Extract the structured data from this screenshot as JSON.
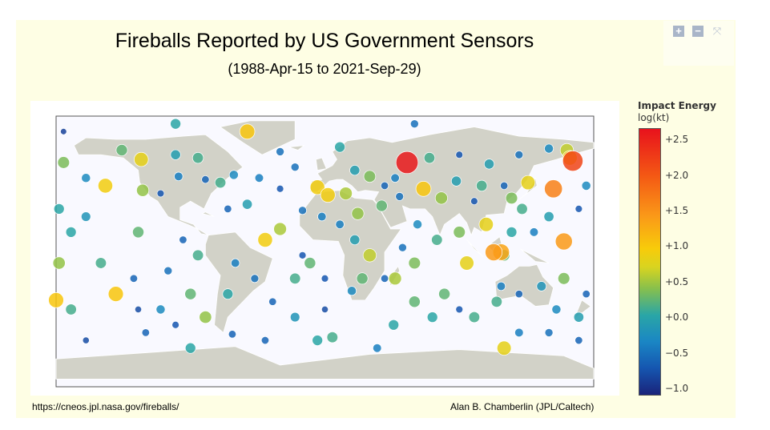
{
  "chart_data": {
    "type": "scatter",
    "subtype": "geo-bubble-map",
    "title": "Fireballs Reported by US Government Sensors",
    "subtitle": "(1988-Apr-15 to 2021-Sep-29)",
    "colorbar": {
      "title": "Impact Energy",
      "unit": "log(kt)",
      "range": [
        -1.1,
        2.66
      ],
      "ticks": [
        {
          "v": 2.5,
          "label": "+2.5"
        },
        {
          "v": 2.0,
          "label": "+2.0"
        },
        {
          "v": 1.5,
          "label": "+1.5"
        },
        {
          "v": 1.0,
          "label": "+1.0"
        },
        {
          "v": 0.5,
          "label": "+0.5"
        },
        {
          "v": 0.0,
          "label": "+0.0"
        },
        {
          "v": -0.5,
          "label": "−0.5"
        },
        {
          "v": -1.0,
          "label": "−1.0"
        }
      ]
    },
    "points_fields": [
      "lon",
      "lat",
      "log_energy_kt"
    ],
    "points": [
      [
        55,
        55,
        2.6
      ],
      [
        166,
        56,
        2.2
      ],
      [
        153,
        38,
        1.7
      ],
      [
        -180,
        -34,
        1.1
      ],
      [
        113,
        -3,
        1.5
      ],
      [
        118,
        -3,
        1.4
      ],
      [
        160,
        4,
        1.5
      ],
      [
        136,
        42,
        0.9
      ],
      [
        164,
        58,
        1.0
      ],
      [
        -147,
        40,
        1.0
      ],
      [
        -123,
        57,
        0.9
      ],
      [
        -122,
        37,
        0.5
      ],
      [
        -136,
        63,
        0.3
      ],
      [
        -100,
        60,
        0.0
      ],
      [
        -85,
        58,
        0.2
      ],
      [
        -98,
        46,
        -0.3
      ],
      [
        -80,
        44,
        -0.5
      ],
      [
        -110,
        35,
        -0.6
      ],
      [
        -70,
        42,
        0.2
      ],
      [
        -61,
        47,
        -0.2
      ],
      [
        -44,
        45,
        -0.3
      ],
      [
        -20,
        52,
        -0.4
      ],
      [
        -30,
        38,
        -0.6
      ],
      [
        -5,
        39,
        1.0
      ],
      [
        2,
        34,
        1.0
      ],
      [
        -15,
        24,
        -0.4
      ],
      [
        -30,
        12,
        0.6
      ],
      [
        -160,
        20,
        -0.1
      ],
      [
        -170,
        10,
        0.1
      ],
      [
        -150,
        -10,
        0.2
      ],
      [
        -128,
        -20,
        -0.5
      ],
      [
        -140,
        -30,
        1.1
      ],
      [
        -110,
        -40,
        -0.2
      ],
      [
        -100,
        -50,
        -0.6
      ],
      [
        -170,
        -40,
        0.2
      ],
      [
        -60,
        -10,
        -0.3
      ],
      [
        -47,
        -20,
        -0.4
      ],
      [
        -65,
        -30,
        0.1
      ],
      [
        -35,
        -35,
        -0.5
      ],
      [
        -20,
        -20,
        0.2
      ],
      [
        -10,
        -10,
        0.3
      ],
      [
        0,
        -40,
        -0.7
      ],
      [
        -40,
        -60,
        -0.5
      ],
      [
        20,
        50,
        0.0
      ],
      [
        30,
        46,
        0.4
      ],
      [
        40,
        40,
        -0.5
      ],
      [
        47,
        45,
        -0.3
      ],
      [
        70,
        58,
        0.2
      ],
      [
        90,
        60,
        -0.6
      ],
      [
        110,
        54,
        0.0
      ],
      [
        130,
        60,
        -0.4
      ],
      [
        150,
        64,
        -0.2
      ],
      [
        14,
        35,
        0.6
      ],
      [
        22,
        22,
        0.5
      ],
      [
        38,
        27,
        0.3
      ],
      [
        50,
        33,
        -0.4
      ],
      [
        66,
        38,
        1.1
      ],
      [
        78,
        32,
        0.5
      ],
      [
        88,
        43,
        0.0
      ],
      [
        100,
        30,
        -0.6
      ],
      [
        105,
        40,
        0.2
      ],
      [
        120,
        40,
        -0.5
      ],
      [
        10,
        15,
        -0.3
      ],
      [
        20,
        5,
        0.0
      ],
      [
        30,
        -5,
        0.7
      ],
      [
        25,
        -20,
        0.3
      ],
      [
        18,
        -28,
        -0.2
      ],
      [
        40,
        -20,
        -0.5
      ],
      [
        47,
        -20,
        0.6
      ],
      [
        52,
        0,
        -0.4
      ],
      [
        60,
        -10,
        0.4
      ],
      [
        62,
        15,
        -0.2
      ],
      [
        75,
        5,
        0.2
      ],
      [
        90,
        10,
        0.4
      ],
      [
        95,
        -10,
        0.9
      ],
      [
        80,
        -30,
        0.3
      ],
      [
        72,
        -45,
        0.1
      ],
      [
        60,
        -35,
        0.3
      ],
      [
        90,
        -40,
        -0.6
      ],
      [
        100,
        -45,
        0.2
      ],
      [
        118,
        -25,
        -0.3
      ],
      [
        130,
        -30,
        -0.5
      ],
      [
        145,
        -25,
        -0.1
      ],
      [
        160,
        -20,
        0.4
      ],
      [
        175,
        -30,
        -0.5
      ],
      [
        170,
        -45,
        0.0
      ],
      [
        130,
        -55,
        -0.3
      ],
      [
        150,
        -55,
        -0.4
      ],
      [
        120,
        -65,
        0.9
      ],
      [
        140,
        10,
        -0.3
      ],
      [
        150,
        20,
        0.0
      ],
      [
        170,
        25,
        -0.6
      ],
      [
        125,
        10,
        0.1
      ],
      [
        108,
        15,
        0.9
      ],
      [
        132,
        25,
        0.2
      ],
      [
        175,
        40,
        -0.2
      ],
      [
        -175,
        55,
        0.4
      ],
      [
        -178,
        -10,
        0.5
      ],
      [
        -125,
        10,
        0.3
      ],
      [
        -95,
        5,
        -0.5
      ],
      [
        -85,
        -5,
        0.2
      ],
      [
        -105,
        -15,
        -0.4
      ],
      [
        -90,
        -30,
        0.3
      ],
      [
        -120,
        -55,
        -0.5
      ],
      [
        -80,
        -45,
        0.5
      ],
      [
        -40,
        5,
        1.0
      ],
      [
        -52,
        28,
        0.0
      ],
      [
        35,
        -65,
        -0.3
      ],
      [
        5,
        -58,
        0.2
      ],
      [
        -20,
        -45,
        -0.1
      ],
      [
        -65,
        25,
        -0.5
      ],
      [
        -160,
        45,
        -0.2
      ],
      [
        -178,
        25,
        0.1
      ],
      [
        -125,
        -40,
        -0.7
      ],
      [
        -30,
        62,
        -0.4
      ],
      [
        10,
        65,
        0.1
      ],
      [
        -62,
        -56,
        -0.5
      ],
      [
        -5,
        -60,
        0.1
      ],
      [
        -15,
        -5,
        -0.6
      ],
      [
        -2,
        20,
        -0.3
      ],
      [
        115,
        -35,
        0.2
      ],
      [
        155,
        -40,
        -0.2
      ],
      [
        170,
        -60,
        -0.5
      ],
      [
        -90,
        -65,
        0.1
      ],
      [
        -160,
        -60,
        -0.7
      ],
      [
        -175,
        75,
        -0.8
      ],
      [
        -100,
        80,
        0.1
      ],
      [
        60,
        80,
        -0.4
      ],
      [
        0,
        -20,
        -0.6
      ],
      [
        46,
        -50,
        0.1
      ],
      [
        120,
        -5,
        0.3
      ],
      [
        125,
        32,
        0.4
      ],
      [
        -52,
        75,
        1.1
      ],
      [
        162,
        63,
        0.7
      ]
    ],
    "source_url": "https://cneos.jpl.nasa.gov/fireballs/",
    "credit": "Alan B. Chamberlin (JPL/Caltech)"
  },
  "modebar": {
    "zoom_in": "+",
    "zoom_out": "−",
    "reset": "⤧"
  }
}
